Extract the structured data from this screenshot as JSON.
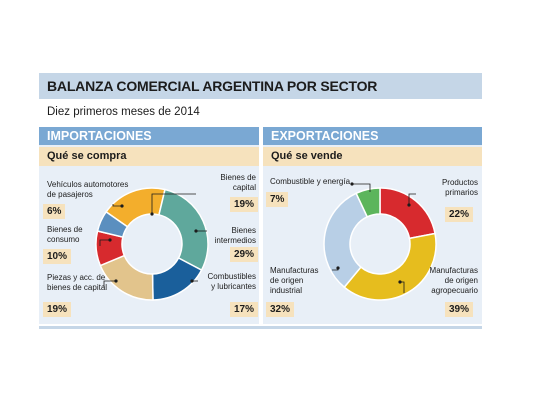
{
  "header": {
    "title": "BALANZA COMERCIAL ARGENTINA POR SECTOR",
    "subtitle": "Diez primeros meses de 2014"
  },
  "panels": {
    "imports": {
      "title": "IMPORTACIONES",
      "subtitle": "Qué se compra"
    },
    "exports": {
      "title": "EXPORTACIONES",
      "subtitle": "Qué se vende"
    }
  },
  "chart_data": [
    {
      "type": "pie",
      "title": "IMPORTACIONES",
      "categories": [
        "Bienes de capital",
        "Bienes intermedios",
        "Combustibles y lubricantes",
        "Piezas y acc. de bienes de capital",
        "Bienes de consumo",
        "Vehículos automotores de pasajeros"
      ],
      "values": [
        19,
        29,
        17,
        19,
        10,
        6
      ],
      "value_labels": [
        "19%",
        "29%",
        "17%",
        "19%",
        "10%",
        "6%"
      ],
      "colors": [
        "#f3ae2c",
        "#5fa89c",
        "#1a5f9b",
        "#e2c48c",
        "#d72a2e",
        "#5b8fbf"
      ],
      "labels": [
        [
          "Bienes de",
          "capital"
        ],
        [
          "Bienes",
          "intermedios"
        ],
        [
          "Combustibles",
          "y lubricantes"
        ],
        [
          "Piezas y acc. de",
          "bienes de capital"
        ],
        [
          "Bienes de",
          "consumo"
        ],
        [
          "Vehículos automotores",
          "de pasajeros"
        ]
      ]
    },
    {
      "type": "pie",
      "title": "EXPORTACIONES",
      "categories": [
        "Productos primarios",
        "Manufacturas de origen agropecuario",
        "Manufacturas de origen industrial",
        "Combustible y energía"
      ],
      "values": [
        22,
        39,
        32,
        7
      ],
      "value_labels": [
        "22%",
        "39%",
        "32%",
        "7%"
      ],
      "colors": [
        "#d72a2e",
        "#e6bd1e",
        "#b8cfe6",
        "#5cb55c"
      ],
      "labels": [
        [
          "Productos",
          "primarios"
        ],
        [
          "Manufacturas",
          "de origen",
          "agropecuario"
        ],
        [
          "Manufacturas",
          "de origen",
          "industrial"
        ],
        [
          "Combustible y energía"
        ]
      ]
    }
  ]
}
